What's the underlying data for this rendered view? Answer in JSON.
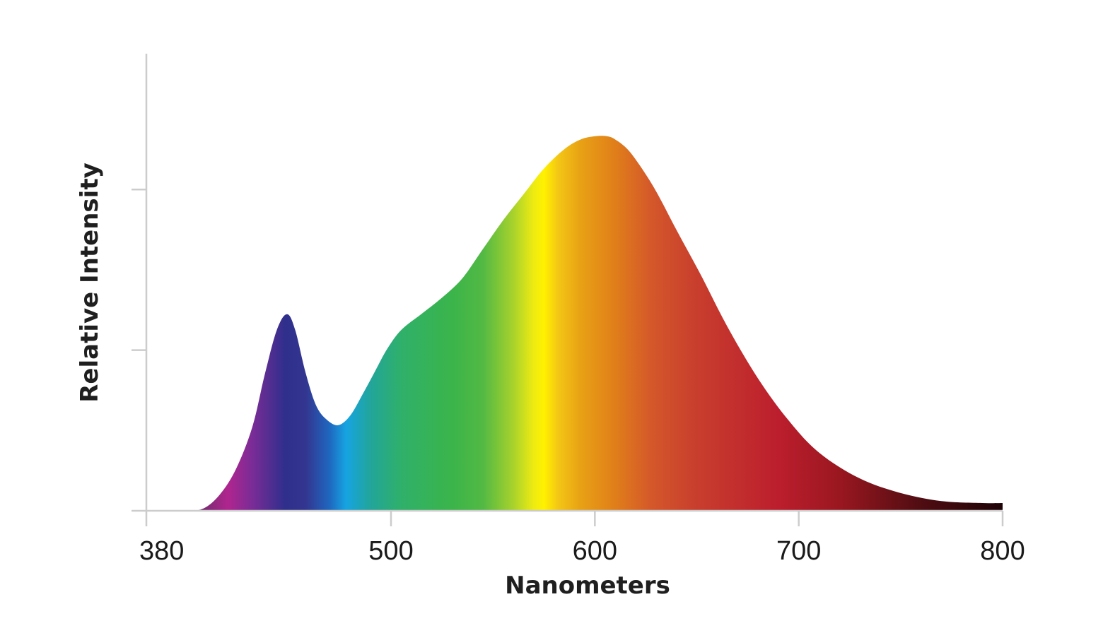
{
  "chart_data": {
    "type": "area",
    "title": "",
    "xlabel": "Nanometers",
    "ylabel": "Relative Intensity",
    "xlim": [
      380,
      800
    ],
    "ylim": [
      0,
      1
    ],
    "x_ticks": [
      380,
      500,
      600,
      700,
      800
    ],
    "x_tick_labels": [
      "380",
      "500",
      "600",
      "700",
      "800"
    ],
    "y_ticks": [
      0,
      0.5,
      1
    ],
    "y_tick_labels": [],
    "grid": false,
    "fill": "visible-spectrum-gradient",
    "series": [
      {
        "x": [
          380,
          400,
          408,
          416,
          424,
          432,
          438,
          444,
          449,
          453,
          458,
          463,
          468,
          474,
          480,
          486,
          492,
          498,
          505,
          515,
          525,
          535,
          545,
          555,
          565,
          575,
          585,
          593,
          600,
          606,
          610,
          616,
          622,
          630,
          640,
          652,
          665,
          680,
          695,
          710,
          730,
          750,
          770,
          790,
          800
        ],
        "y": [
          0.0,
          0.0,
          0.007,
          0.05,
          0.13,
          0.26,
          0.42,
          0.56,
          0.609,
          0.56,
          0.43,
          0.33,
          0.285,
          0.265,
          0.295,
          0.36,
          0.43,
          0.5,
          0.56,
          0.61,
          0.66,
          0.72,
          0.81,
          0.9,
          0.98,
          1.06,
          1.12,
          1.15,
          1.16,
          1.16,
          1.15,
          1.12,
          1.07,
          0.99,
          0.87,
          0.73,
          0.57,
          0.41,
          0.28,
          0.18,
          0.1,
          0.055,
          0.03,
          0.024,
          0.024
        ]
      }
    ],
    "spectrum_colors": [
      {
        "nm": 380,
        "color": "#3d2a3a"
      },
      {
        "nm": 405,
        "color": "#6b2d6b"
      },
      {
        "nm": 420,
        "color": "#b0258f"
      },
      {
        "nm": 432,
        "color": "#7a2c96"
      },
      {
        "nm": 448,
        "color": "#2f2f8c"
      },
      {
        "nm": 458,
        "color": "#33358f"
      },
      {
        "nm": 470,
        "color": "#1f68c0"
      },
      {
        "nm": 478,
        "color": "#16a4e2"
      },
      {
        "nm": 490,
        "color": "#22a59a"
      },
      {
        "nm": 505,
        "color": "#2fb06a"
      },
      {
        "nm": 530,
        "color": "#3bb44a"
      },
      {
        "nm": 545,
        "color": "#52b944"
      },
      {
        "nm": 560,
        "color": "#a8d22c"
      },
      {
        "nm": 570,
        "color": "#eeeb12"
      },
      {
        "nm": 575,
        "color": "#fff200"
      },
      {
        "nm": 582,
        "color": "#f3c615"
      },
      {
        "nm": 593,
        "color": "#e8a114"
      },
      {
        "nm": 610,
        "color": "#e07e1a"
      },
      {
        "nm": 628,
        "color": "#d4572a"
      },
      {
        "nm": 650,
        "color": "#c83e2d"
      },
      {
        "nm": 690,
        "color": "#bc1e2d"
      },
      {
        "nm": 720,
        "color": "#9a1720"
      },
      {
        "nm": 760,
        "color": "#4f0d12"
      },
      {
        "nm": 800,
        "color": "#1e0307"
      }
    ],
    "axis_color": "#cccccc"
  }
}
